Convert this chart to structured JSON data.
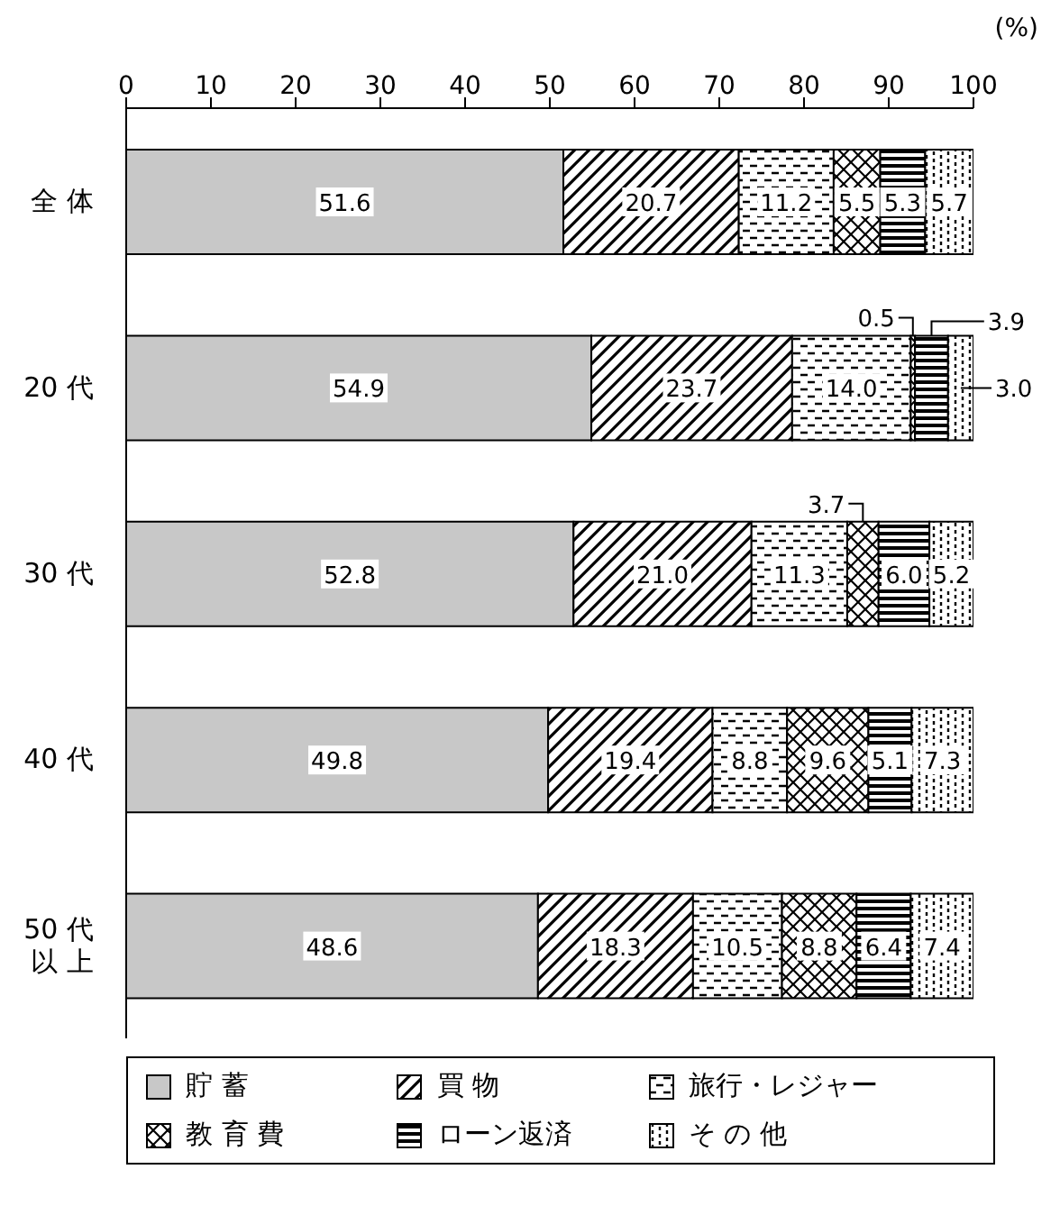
{
  "chart_data": {
    "type": "bar",
    "orientation": "horizontal",
    "stacked": true,
    "xlabel": "(%)",
    "categories": [
      "全 体",
      "20 代",
      "30 代",
      "40 代",
      "50 代以 上"
    ],
    "series": [
      {
        "name": "貯 蓄",
        "color": "#c8c8c8",
        "values": [
          51.6,
          54.9,
          52.8,
          49.8,
          48.6
        ],
        "value_labels": [
          "51.6",
          "54.9",
          "52.8",
          "49.8",
          "48.6"
        ]
      },
      {
        "name": "買 物",
        "color": "#000000",
        "values": [
          20.7,
          23.7,
          21.0,
          19.4,
          18.3
        ],
        "value_labels": [
          "20.7",
          "23.7",
          "21.0",
          "19.4",
          "18.3"
        ]
      },
      {
        "name": "旅行・レジャー",
        "color": "#000000",
        "values": [
          11.2,
          14.0,
          11.3,
          8.8,
          10.5
        ],
        "value_labels": [
          "11.2",
          "14.0",
          "11.3",
          "8.8",
          "10.5"
        ]
      },
      {
        "name": "教 育 費",
        "color": "#000000",
        "values": [
          5.5,
          0.5,
          3.7,
          9.6,
          8.8
        ],
        "value_labels": [
          "5.5",
          "0.5",
          "3.7",
          "9.6",
          "8.8"
        ]
      },
      {
        "name": "ローン返済",
        "color": "#000000",
        "values": [
          5.3,
          3.9,
          6.0,
          5.1,
          6.4
        ],
        "value_labels": [
          "5.3",
          "3.9",
          "6.0",
          "5.1",
          "6.4"
        ]
      },
      {
        "name": "そ の 他",
        "color": "#000000",
        "values": [
          5.7,
          3.0,
          5.2,
          7.3,
          7.4
        ],
        "value_labels": [
          "5.7",
          "3.0",
          "5.2",
          "7.3",
          "7.4"
        ]
      }
    ],
    "xlim": [
      0,
      100
    ],
    "xticks": [
      0,
      10,
      20,
      30,
      40,
      50,
      60,
      70,
      80,
      90,
      100
    ],
    "legend": "bottom"
  }
}
